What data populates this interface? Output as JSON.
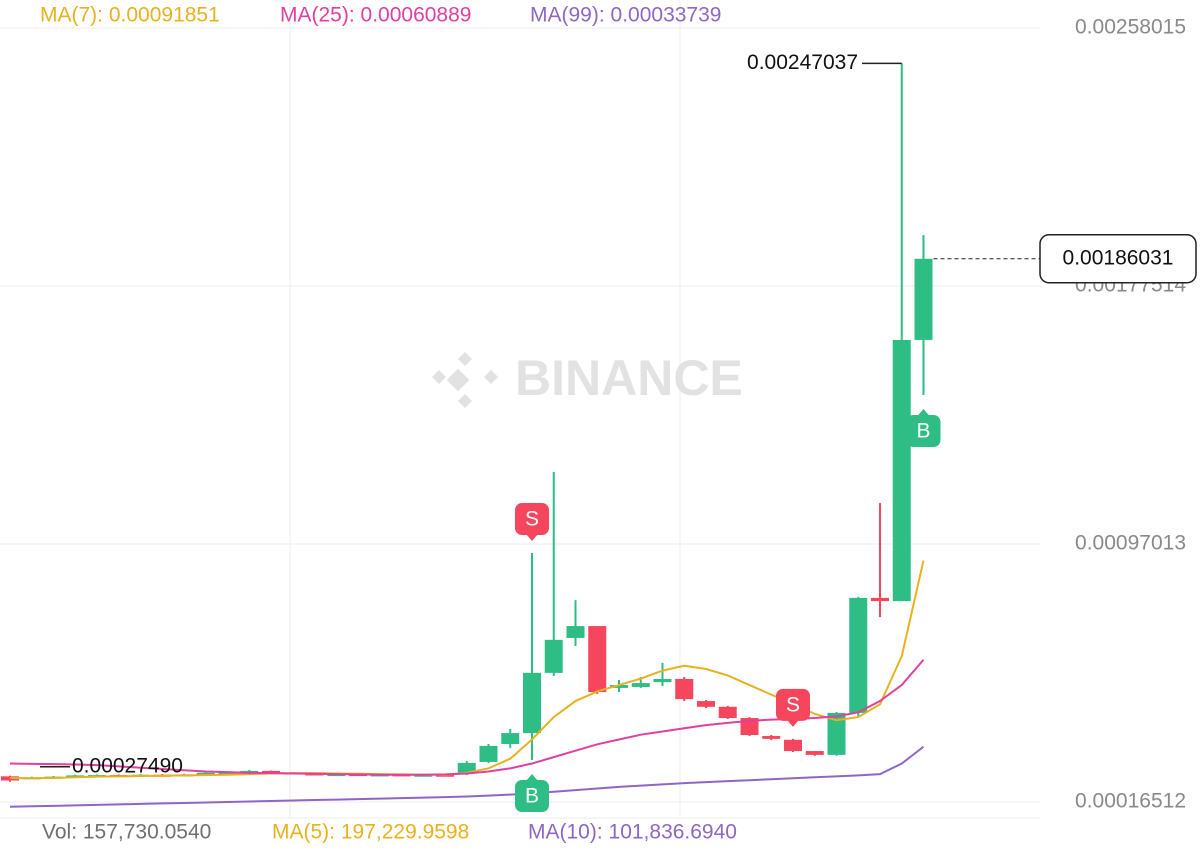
{
  "chart_data": {
    "type": "candlestick",
    "ylim": [
      0.000115,
      0.002668
    ],
    "yticks": [
      0.00016512,
      0.00097013,
      0.00177514,
      0.00258015
    ],
    "grid": true,
    "up_color": "#2ebd85",
    "down_color": "#f6465d",
    "open": [
      0.000245,
      0.00024,
      0.000242,
      0.000243,
      0.000246,
      0.000249,
      0.000247,
      0.00025,
      0.000248,
      0.000249,
      0.000253,
      0.000258,
      0.000262,
      0.000257,
      0.000254,
      0.00025,
      0.000252,
      0.000249,
      0.000251,
      0.000248,
      0.00025,
      0.000256,
      0.00029,
      0.000346,
      0.00038,
      0.000568,
      0.000677,
      0.000714,
      0.000521,
      0.000524,
      0.000539,
      0.000549,
      0.00048,
      0.000462,
      0.000427,
      0.000371,
      0.000359,
      0.000324,
      0.000312,
      0.000443,
      0.000802,
      0.000792,
      0.001607
    ],
    "high": [
      0.000247,
      0.000244,
      0.000246,
      0.00025,
      0.000251,
      0.000251,
      0.000252,
      0.000252,
      0.000253,
      0.000258,
      0.00026,
      0.000265,
      0.000263,
      0.000258,
      0.000255,
      0.000254,
      0.000253,
      0.000253,
      0.000252,
      0.000252,
      0.000251,
      0.000293,
      0.000346,
      0.000393,
      0.000942,
      0.001195,
      0.000795,
      0.000714,
      0.000546,
      0.000555,
      0.000599,
      0.000555,
      0.000483,
      0.000465,
      0.00043,
      0.000374,
      0.000362,
      0.000324,
      0.000446,
      0.000805,
      0.001098,
      0.00247037,
      0.001934
    ],
    "low": [
      0.000228,
      0.000238,
      0.00024,
      0.000242,
      0.000245,
      0.000245,
      0.000246,
      0.000246,
      0.000247,
      0.000248,
      0.000252,
      0.000256,
      0.000255,
      0.000252,
      0.000248,
      0.000249,
      0.000247,
      0.000248,
      0.000246,
      0.000247,
      0.000247,
      0.000249,
      0.000287,
      0.000334,
      0.000296,
      0.000558,
      0.000652,
      0.000502,
      0.000508,
      0.000521,
      0.000527,
      0.00048,
      0.000458,
      0.000424,
      0.000371,
      0.000358,
      0.000321,
      0.000309,
      0.000309,
      0.000433,
      0.000742,
      0.000792,
      0.001435
    ],
    "close": [
      0.000232,
      0.000242,
      0.000244,
      0.000248,
      0.000249,
      0.000247,
      0.00025,
      0.000248,
      0.000251,
      0.000256,
      0.000258,
      0.000262,
      0.000257,
      0.000254,
      0.00025,
      0.000252,
      0.000249,
      0.000251,
      0.000248,
      0.00025,
      0.000249,
      0.000287,
      0.00034,
      0.00038,
      0.000568,
      0.000671,
      0.000714,
      0.000508,
      0.00053,
      0.000536,
      0.000549,
      0.000486,
      0.000462,
      0.000427,
      0.000374,
      0.000362,
      0.000324,
      0.000312,
      0.000443,
      0.000802,
      0.000792,
      0.001607,
      0.00186031
    ],
    "series": [
      {
        "name": "MA(7): 0.00091851",
        "color": "#e8b21e",
        "values": [
          0.00024,
          0.000239,
          0.00024,
          0.000242,
          0.000244,
          0.000245,
          0.000246,
          0.000247,
          0.000248,
          0.000249,
          0.00025,
          0.000252,
          0.000254,
          0.000255,
          0.000255,
          0.000254,
          0.000253,
          0.000252,
          0.000251,
          0.00025,
          0.00025,
          0.000256,
          0.00027,
          0.0003,
          0.00036,
          0.00043,
          0.00048,
          0.00051,
          0.00053,
          0.00055,
          0.000575,
          0.00059,
          0.00058,
          0.00056,
          0.00053,
          0.0005,
          0.00047,
          0.00044,
          0.00042,
          0.00043,
          0.00047,
          0.00062,
          0.00091851
        ]
      },
      {
        "name": "MA(25): 0.00060889",
        "color": "#e040a0",
        "values": [
          0.000285,
          0.000284,
          0.000283,
          0.000282,
          0.00028,
          0.000276,
          0.000272,
          0.000268,
          0.000264,
          0.00026,
          0.000258,
          0.000256,
          0.000255,
          0.000254,
          0.000253,
          0.000252,
          0.000251,
          0.00025,
          0.00025,
          0.00025,
          0.000251,
          0.000254,
          0.00026,
          0.00027,
          0.000285,
          0.000305,
          0.000325,
          0.000345,
          0.00036,
          0.000375,
          0.000385,
          0.000395,
          0.000405,
          0.000412,
          0.000418,
          0.000422,
          0.000424,
          0.000427,
          0.000432,
          0.000445,
          0.00048,
          0.00053,
          0.00060889
        ]
      },
      {
        "name": "MA(99): 0.00033739",
        "color": "#8e67c5",
        "values": [
          0.00015,
          0.0001515,
          0.000153,
          0.0001545,
          0.000156,
          0.0001575,
          0.000159,
          0.0001605,
          0.000162,
          0.0001635,
          0.000165,
          0.0001665,
          0.000168,
          0.0001695,
          0.000171,
          0.0001725,
          0.000174,
          0.0001755,
          0.000177,
          0.0001785,
          0.00018,
          0.000182,
          0.000185,
          0.000188,
          0.000192,
          0.000197,
          0.000202,
          0.000207,
          0.000212,
          0.000216,
          0.00022,
          0.000224,
          0.000227,
          0.00023,
          0.000233,
          0.000236,
          0.000239,
          0.000242,
          0.000245,
          0.000248,
          0.000252,
          0.000285,
          0.00033739
        ]
      }
    ],
    "low_label": {
      "value": 0.0002749,
      "label": "0.00027490"
    },
    "markers": [
      {
        "candle": 24,
        "side": "S"
      },
      {
        "candle": 24,
        "side": "B"
      },
      {
        "candle": 36,
        "side": "S"
      },
      {
        "candle": 42,
        "side": "B"
      }
    ],
    "volume_legend": [
      {
        "text": "Vol: 157,730.0540",
        "color": "#707070"
      },
      {
        "text": "MA(5): 197,229.9598",
        "color": "#e8b21e"
      },
      {
        "text": "MA(10): 101,836.6940",
        "color": "#8e67c5"
      }
    ],
    "watermark": "BINANCE"
  }
}
